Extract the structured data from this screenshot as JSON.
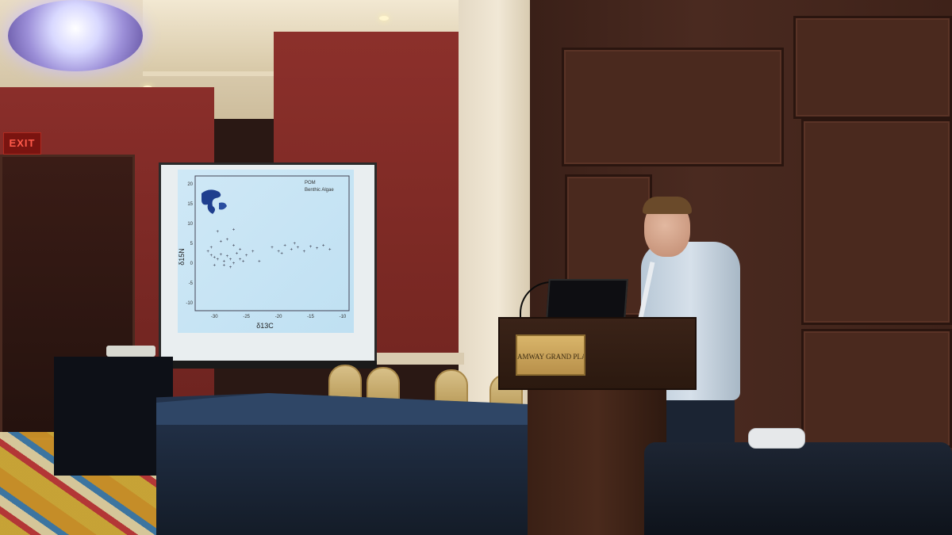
{
  "scene": {
    "exit_sign": "EXIT",
    "podium_plaque": "AMWAY GRAND PLAZA"
  },
  "slide": {
    "legend": [
      "POM",
      "Benthic Algae"
    ],
    "xlabel": "δ13C",
    "ylabel": "δ15N",
    "x_ticks": [
      "-30",
      "-25",
      "-20",
      "-15",
      "-10"
    ],
    "y_ticks": [
      "20",
      "15",
      "10",
      "5",
      "0",
      "-5",
      "-10"
    ]
  },
  "chart_data": {
    "type": "scatter",
    "xlabel": "δ13C",
    "ylabel": "δ15N",
    "xlim": [
      -33,
      -9
    ],
    "ylim": [
      -12,
      22
    ],
    "series": [
      {
        "name": "POM",
        "points": [
          [
            -31,
            3
          ],
          [
            -30.5,
            2
          ],
          [
            -30,
            1.5
          ],
          [
            -29.5,
            1
          ],
          [
            -29,
            2.2
          ],
          [
            -28.5,
            0.5
          ],
          [
            -28,
            1.8
          ],
          [
            -27.5,
            1
          ],
          [
            -27,
            0
          ],
          [
            -26.5,
            2.5
          ],
          [
            -26,
            1
          ],
          [
            -29,
            5.5
          ],
          [
            -28,
            6
          ],
          [
            -27,
            4.5
          ],
          [
            -30.5,
            4
          ],
          [
            -26,
            3.5
          ],
          [
            -25.5,
            0.5
          ],
          [
            -28.5,
            -0.5
          ],
          [
            -27.5,
            -1
          ],
          [
            -30,
            -0.5
          ],
          [
            -25,
            2
          ],
          [
            -24,
            3
          ],
          [
            -23,
            0.5
          ],
          [
            -29.5,
            8
          ],
          [
            -27,
            8.5
          ]
        ]
      },
      {
        "name": "Benthic Algae",
        "points": [
          [
            -21,
            4
          ],
          [
            -20,
            3
          ],
          [
            -19,
            4.5
          ],
          [
            -18,
            3.5
          ],
          [
            -17,
            4
          ],
          [
            -16,
            3
          ],
          [
            -15,
            4.2
          ],
          [
            -14,
            3.8
          ],
          [
            -13,
            4.5
          ],
          [
            -12,
            3.5
          ],
          [
            -19.5,
            2.5
          ],
          [
            -17.5,
            5
          ]
        ]
      }
    ]
  }
}
